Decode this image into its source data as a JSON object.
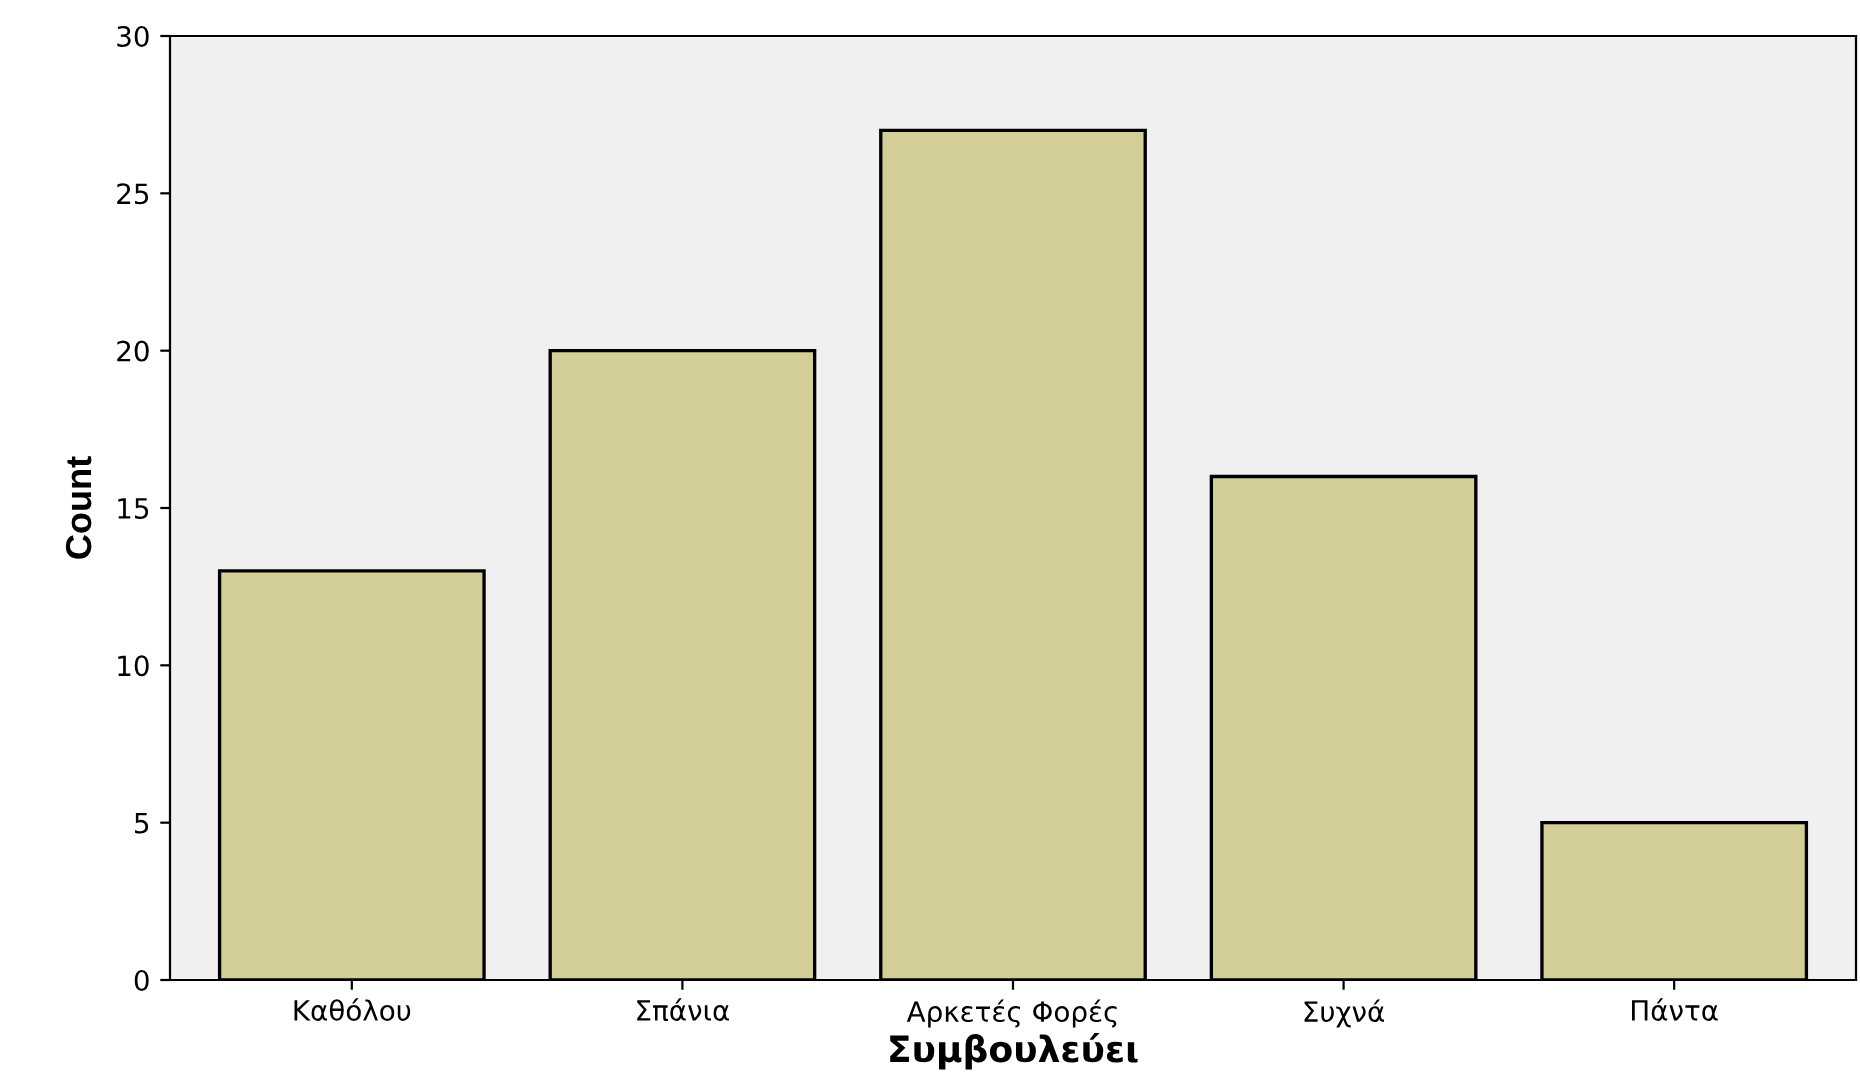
{
  "chart_data": {
    "type": "bar",
    "categories": [
      "Καθόλου",
      "Σπάνια",
      "Αρκετές Φορές",
      "Συχνά",
      "Πάντα"
    ],
    "values": [
      13,
      20,
      27,
      16,
      5
    ],
    "color": "#d3ce97",
    "xlabel": "Συμβουλεύει",
    "ylabel": "Count",
    "ylim": [
      0,
      30
    ],
    "yticks": [
      0,
      5,
      10,
      15,
      20,
      25,
      30
    ]
  }
}
